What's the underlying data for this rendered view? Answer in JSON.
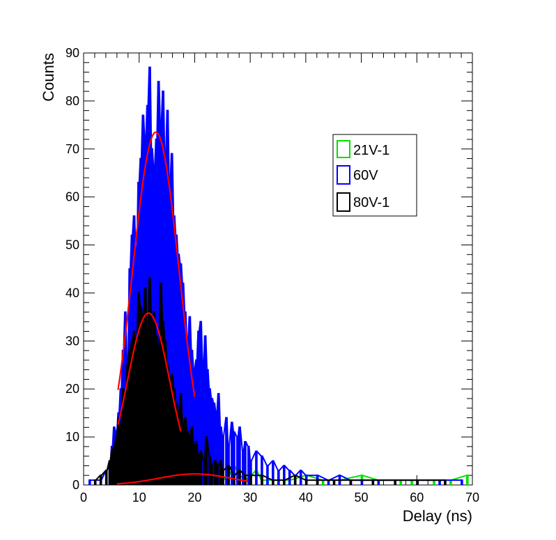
{
  "chart_data": {
    "type": "line",
    "title": "",
    "xlabel": "Delay (ns)",
    "ylabel": "Counts",
    "xlim": [
      0,
      70
    ],
    "ylim": [
      0,
      90
    ],
    "x_ticks": [
      "0",
      "10",
      "20",
      "30",
      "40",
      "50",
      "60",
      "70"
    ],
    "y_ticks": [
      "0",
      "10",
      "20",
      "30",
      "40",
      "50",
      "60",
      "70",
      "80",
      "90"
    ],
    "grid": false,
    "legend_position": "upper-right",
    "bin_width": 0.2,
    "series": [
      {
        "name": "21V-1",
        "color": "#00e000",
        "points": [
          [
            6,
            1
          ],
          [
            8,
            0
          ],
          [
            10,
            1
          ],
          [
            11,
            3
          ],
          [
            12,
            1
          ],
          [
            13,
            4
          ],
          [
            14,
            2
          ],
          [
            15,
            1
          ],
          [
            16,
            3
          ],
          [
            17,
            5
          ],
          [
            18,
            2
          ],
          [
            19,
            3
          ],
          [
            20,
            2
          ],
          [
            21,
            4
          ],
          [
            22,
            3
          ],
          [
            23,
            2
          ],
          [
            24,
            3
          ],
          [
            25,
            1
          ],
          [
            26,
            2
          ],
          [
            27,
            4
          ],
          [
            28,
            2
          ],
          [
            29,
            1
          ],
          [
            30,
            2
          ],
          [
            31,
            3
          ],
          [
            32,
            1
          ],
          [
            33,
            1
          ],
          [
            35,
            1
          ],
          [
            37,
            1
          ],
          [
            40,
            2
          ],
          [
            43,
            1
          ],
          [
            46,
            1
          ],
          [
            50,
            2
          ],
          [
            53,
            1
          ],
          [
            57,
            1
          ],
          [
            59,
            1
          ],
          [
            63,
            1
          ],
          [
            66,
            1
          ],
          [
            69,
            2
          ]
        ]
      },
      {
        "name": "60V",
        "color": "#0000ff",
        "points": [
          [
            1,
            1
          ],
          [
            2,
            1
          ],
          [
            3,
            1
          ],
          [
            4,
            3
          ],
          [
            4.6,
            4
          ],
          [
            5,
            8
          ],
          [
            5.4,
            12
          ],
          [
            5.8,
            11
          ],
          [
            6.2,
            15
          ],
          [
            6.6,
            20
          ],
          [
            7,
            28
          ],
          [
            7.4,
            36
          ],
          [
            7.8,
            25
          ],
          [
            8.2,
            45
          ],
          [
            8.6,
            52
          ],
          [
            9,
            56
          ],
          [
            9.4,
            48
          ],
          [
            9.8,
            63
          ],
          [
            10.2,
            68
          ],
          [
            10.6,
            77
          ],
          [
            11,
            72
          ],
          [
            11.4,
            79
          ],
          [
            11.8,
            87
          ],
          [
            12.2,
            70
          ],
          [
            12.6,
            66
          ],
          [
            13,
            72
          ],
          [
            13.4,
            84
          ],
          [
            13.8,
            75
          ],
          [
            14.2,
            82
          ],
          [
            14.6,
            68
          ],
          [
            15,
            78
          ],
          [
            15.4,
            63
          ],
          [
            15.8,
            69
          ],
          [
            16.2,
            56
          ],
          [
            16.6,
            52
          ],
          [
            17,
            48
          ],
          [
            17.4,
            46
          ],
          [
            17.8,
            42
          ],
          [
            18.2,
            36
          ],
          [
            18.6,
            30
          ],
          [
            19,
            35
          ],
          [
            19.4,
            28
          ],
          [
            19.8,
            24
          ],
          [
            20.2,
            26
          ],
          [
            20.6,
            32
          ],
          [
            21,
            34
          ],
          [
            21.4,
            25
          ],
          [
            21.8,
            31
          ],
          [
            22.2,
            24
          ],
          [
            22.6,
            20
          ],
          [
            23,
            18
          ],
          [
            23.4,
            17
          ],
          [
            23.8,
            15
          ],
          [
            24.2,
            19
          ],
          [
            24.6,
            12
          ],
          [
            25,
            10
          ],
          [
            25.6,
            14
          ],
          [
            26,
            8
          ],
          [
            26.6,
            13
          ],
          [
            27,
            11
          ],
          [
            27.6,
            10
          ],
          [
            28,
            12
          ],
          [
            28.6,
            7
          ],
          [
            29,
            9
          ],
          [
            29.6,
            8
          ],
          [
            30,
            5
          ],
          [
            31,
            7
          ],
          [
            32,
            6
          ],
          [
            33,
            4
          ],
          [
            34,
            5
          ],
          [
            35,
            3
          ],
          [
            36,
            4
          ],
          [
            37,
            3
          ],
          [
            38,
            2
          ],
          [
            39,
            3
          ],
          [
            40,
            2
          ],
          [
            42,
            2
          ],
          [
            44,
            1
          ],
          [
            46,
            2
          ],
          [
            48,
            1
          ],
          [
            50,
            1
          ],
          [
            53,
            1
          ],
          [
            56,
            1
          ],
          [
            60,
            1
          ],
          [
            64,
            1
          ],
          [
            68,
            1
          ]
        ]
      },
      {
        "name": "80V-1",
        "color": "#000000",
        "points": [
          [
            2,
            1
          ],
          [
            3,
            2
          ],
          [
            4,
            3
          ],
          [
            4.6,
            5
          ],
          [
            5,
            7
          ],
          [
            5.4,
            8
          ],
          [
            5.8,
            10
          ],
          [
            6.2,
            14
          ],
          [
            6.6,
            12
          ],
          [
            7,
            20
          ],
          [
            7.4,
            18
          ],
          [
            7.8,
            25
          ],
          [
            8.2,
            28
          ],
          [
            8.6,
            30
          ],
          [
            9,
            32
          ],
          [
            9.4,
            29
          ],
          [
            9.8,
            40
          ],
          [
            10.2,
            37
          ],
          [
            10.6,
            35
          ],
          [
            11,
            41
          ],
          [
            11.4,
            30
          ],
          [
            11.8,
            43
          ],
          [
            12.2,
            33
          ],
          [
            12.6,
            36
          ],
          [
            13,
            31
          ],
          [
            13.4,
            28
          ],
          [
            13.8,
            42
          ],
          [
            14.2,
            34
          ],
          [
            14.6,
            30
          ],
          [
            15,
            25
          ],
          [
            15.4,
            22
          ],
          [
            15.8,
            23
          ],
          [
            16.2,
            20
          ],
          [
            16.6,
            17
          ],
          [
            17,
            15
          ],
          [
            17.4,
            19
          ],
          [
            17.8,
            12
          ],
          [
            18.2,
            14
          ],
          [
            18.6,
            11
          ],
          [
            19,
            10
          ],
          [
            19.4,
            12
          ],
          [
            19.8,
            8
          ],
          [
            20.2,
            9
          ],
          [
            20.6,
            6
          ],
          [
            21,
            7
          ],
          [
            21.6,
            5
          ],
          [
            22,
            10
          ],
          [
            22.6,
            6
          ],
          [
            23,
            4
          ],
          [
            23.6,
            5
          ],
          [
            24,
            4
          ],
          [
            24.6,
            5
          ],
          [
            25,
            3
          ],
          [
            26,
            4
          ],
          [
            27,
            2
          ],
          [
            28,
            3
          ],
          [
            29,
            2
          ],
          [
            30,
            2
          ],
          [
            32,
            2
          ],
          [
            34,
            1
          ],
          [
            36,
            1
          ],
          [
            38,
            2
          ],
          [
            40,
            1
          ],
          [
            42,
            1
          ],
          [
            45,
            1
          ],
          [
            48,
            1
          ],
          [
            52,
            1
          ],
          [
            56,
            1
          ],
          [
            60,
            1
          ],
          [
            65,
            1
          ]
        ]
      }
    ],
    "fits": [
      {
        "series": "60V",
        "color": "#ff0000",
        "x_range": [
          6.2,
          20.0
        ],
        "mean": 13.0,
        "sigma": 4.2,
        "amplitude": 73.5
      },
      {
        "series": "80V-1",
        "color": "#ff0000",
        "x_range": [
          6.2,
          17.5
        ],
        "mean": 11.7,
        "sigma": 3.8,
        "amplitude": 35.8
      },
      {
        "series": "21V-1",
        "color": "#ff0000",
        "x_range": [
          6.0,
          29.5
        ],
        "mean": 20.0,
        "sigma": 6.5,
        "amplitude": 2.3
      }
    ]
  }
}
